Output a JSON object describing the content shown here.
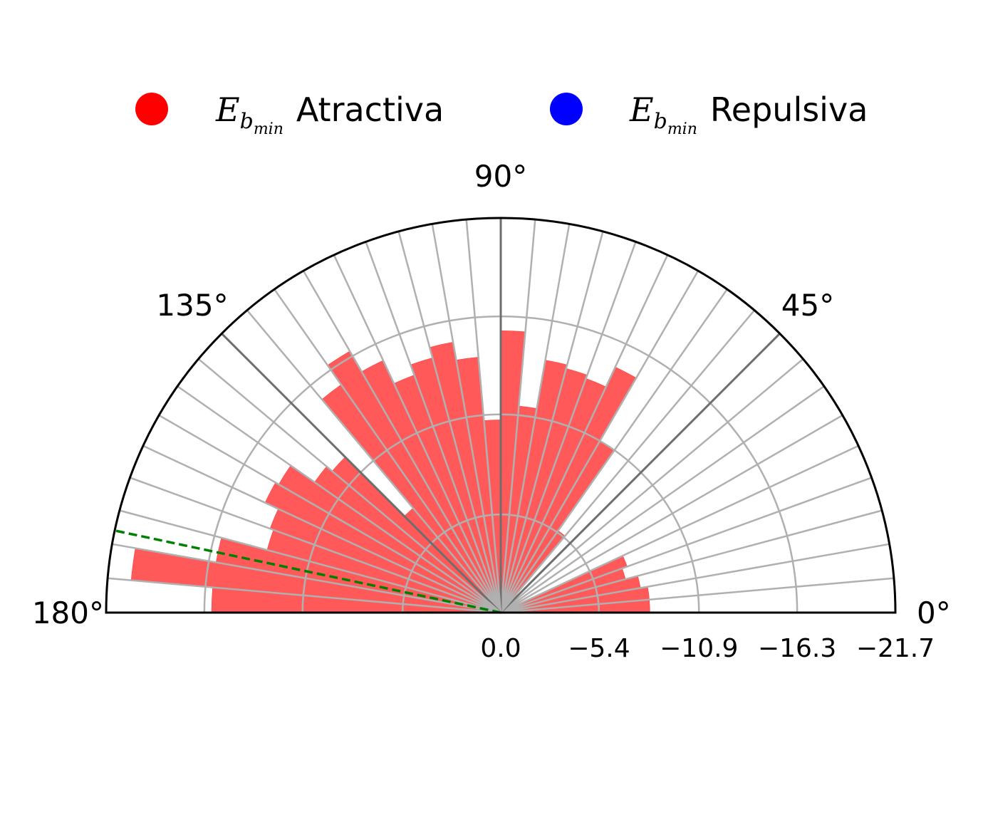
{
  "chart_data": {
    "type": "bar",
    "projection": "polar-half",
    "legend": {
      "placement": "top",
      "items": [
        {
          "name": "Atractiva",
          "symbol": "E",
          "subscript": "b",
          "subsubscript": "min",
          "color": "#ff0000"
        },
        {
          "name": "Repulsiva",
          "symbol": "E",
          "subscript": "b",
          "subsubscript": "min",
          "color": "#0000ff"
        }
      ]
    },
    "theta_ticks": [
      0,
      45,
      90,
      135,
      180
    ],
    "theta_tick_labels": [
      "0°",
      "45°",
      "90°",
      "135°",
      "180°"
    ],
    "r_ticks": [
      0.0,
      -5.4,
      -10.9,
      -16.3,
      -21.7
    ],
    "r_tick_labels": [
      "0.0",
      "−5.4",
      "−10.9",
      "−16.3",
      "−21.7"
    ],
    "rlim": [
      0.0,
      -21.7
    ],
    "bin_width_deg": 5,
    "bars_color": "#ff5959",
    "series": [
      {
        "name": "Atractiva",
        "bin_centers_deg": [
          2.5,
          7.5,
          12.5,
          17.5,
          22.5,
          27.5,
          32.5,
          37.5,
          42.5,
          47.5,
          52.5,
          57.5,
          62.5,
          67.5,
          72.5,
          77.5,
          82.5,
          87.5,
          92.5,
          97.5,
          102.5,
          107.5,
          112.5,
          117.5,
          122.5,
          127.5,
          132.5,
          137.5,
          142.5,
          147.5,
          152.5,
          157.5,
          162.5,
          167.5,
          172.5,
          177.5
        ],
        "values": [
          -8.2,
          -8.2,
          -7.8,
          -7.1,
          -7.4,
          -0.4,
          0.0,
          0.0,
          0.0,
          0.0,
          -5.5,
          -10.9,
          -14.9,
          -13.7,
          -13.9,
          -14.1,
          -11.4,
          -15.5,
          -10.6,
          -14.1,
          -15.1,
          -14.5,
          -13.9,
          -15.3,
          -16.6,
          -15.3,
          -7.5,
          -12.1,
          -12.5,
          -14.1,
          -14.3,
          -13.5,
          -13.3,
          -15.9,
          -20.4,
          -15.9
        ]
      },
      {
        "name": "Repulsiva",
        "bin_centers_deg": [],
        "values": []
      }
    ],
    "reference_line": {
      "angle_deg": 168,
      "color": "#008000",
      "style": "dashed"
    }
  }
}
